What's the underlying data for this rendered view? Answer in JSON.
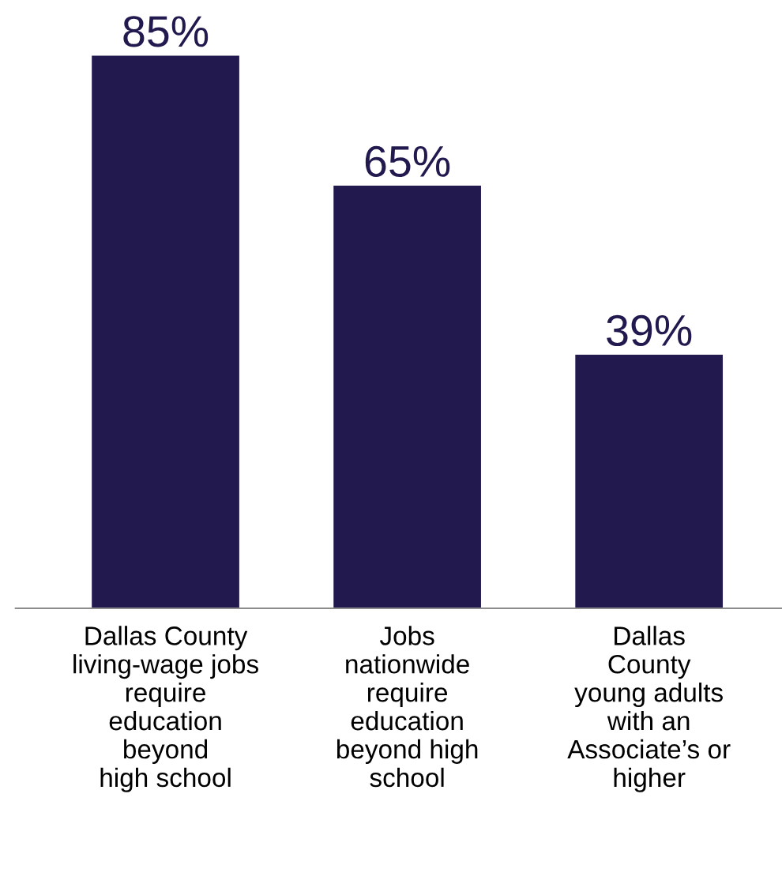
{
  "chart_data": {
    "type": "bar",
    "categories": [
      "Dallas County\nliving-wage jobs\nrequire\neducation\nbeyond\nhigh school",
      "Jobs\nnationwide\nrequire\neducation\nbeyond high\nschool",
      "Dallas\nCounty\nyoung adults\nwith an\nAssociate’s or\nhigher"
    ],
    "values": [
      85,
      65,
      39
    ],
    "value_labels": [
      "85%",
      "65%",
      "39%"
    ],
    "color": "#221a4f"
  }
}
